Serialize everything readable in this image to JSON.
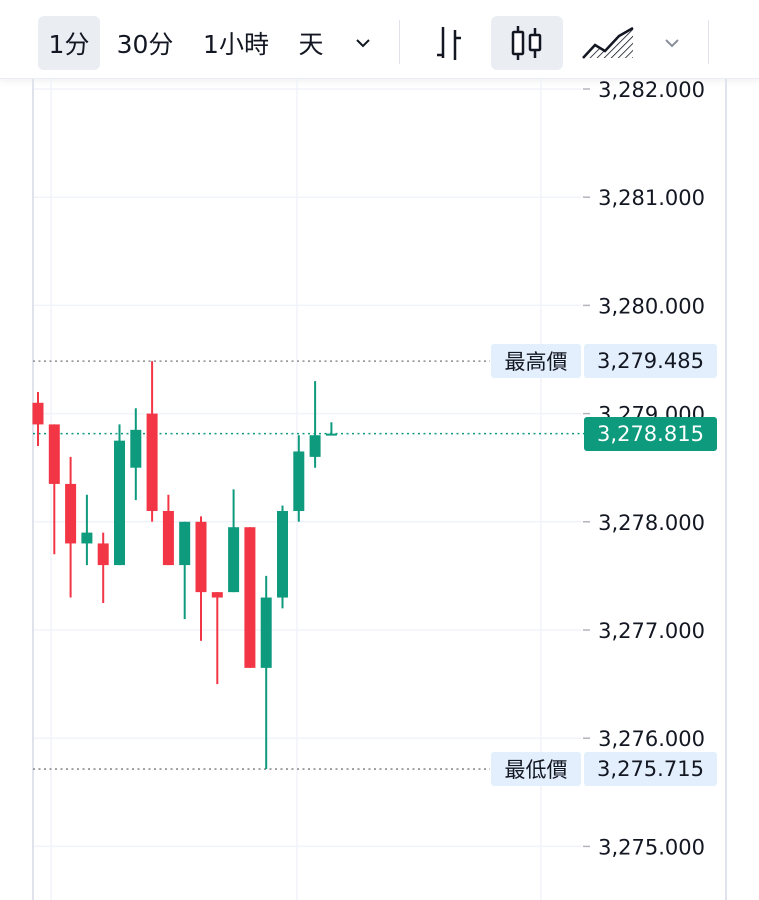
{
  "toolbar": {
    "intervals": [
      {
        "label": "1分",
        "active": true
      },
      {
        "label": "30分",
        "active": false
      },
      {
        "label": "1小時",
        "active": false
      },
      {
        "label": "天",
        "active": false
      }
    ],
    "interval_dropdown_icon": "chevron-down-icon",
    "chart_types": [
      {
        "icon": "bar-chart-icon",
        "active": false
      },
      {
        "icon": "candlestick-icon",
        "active": true
      },
      {
        "icon": "area-chart-icon",
        "active": false
      }
    ],
    "type_dropdown_icon": "chevron-down-icon"
  },
  "chart_data": {
    "type": "candlestick",
    "up_color": "#0d9a7d",
    "down_color": "#f23645",
    "y_ticks": [
      "3,282.000",
      "3,281.000",
      "3,280.000",
      "3,279.000",
      "3,278.000",
      "3,277.000",
      "3,276.000",
      "3,275.000"
    ],
    "y_tick_values": [
      3282,
      3281,
      3280,
      3279,
      3278,
      3277,
      3276,
      3275
    ],
    "ylim": [
      3274.5,
      3282.1
    ],
    "candles": [
      {
        "o": 3279.1,
        "h": 3279.2,
        "l": 3278.7,
        "c": 3278.9
      },
      {
        "o": 3278.9,
        "h": 3278.9,
        "l": 3277.7,
        "c": 3278.35
      },
      {
        "o": 3278.35,
        "h": 3278.6,
        "l": 3277.3,
        "c": 3277.8
      },
      {
        "o": 3277.8,
        "h": 3278.25,
        "l": 3277.6,
        "c": 3277.9
      },
      {
        "o": 3277.8,
        "h": 3277.9,
        "l": 3277.25,
        "c": 3277.6
      },
      {
        "o": 3277.6,
        "h": 3278.9,
        "l": 3277.6,
        "c": 3278.75
      },
      {
        "o": 3278.5,
        "h": 3279.05,
        "l": 3278.2,
        "c": 3278.85
      },
      {
        "o": 3279.0,
        "h": 3279.485,
        "l": 3278.0,
        "c": 3278.1
      },
      {
        "o": 3278.1,
        "h": 3278.25,
        "l": 3277.6,
        "c": 3277.6
      },
      {
        "o": 3277.6,
        "h": 3278.0,
        "l": 3277.1,
        "c": 3278.0
      },
      {
        "o": 3278.0,
        "h": 3278.05,
        "l": 3276.9,
        "c": 3277.35
      },
      {
        "o": 3277.35,
        "h": 3277.35,
        "l": 3276.5,
        "c": 3277.3
      },
      {
        "o": 3277.35,
        "h": 3278.3,
        "l": 3277.35,
        "c": 3277.95
      },
      {
        "o": 3277.95,
        "h": 3277.95,
        "l": 3276.65,
        "c": 3276.65
      },
      {
        "o": 3276.65,
        "h": 3277.5,
        "l": 3275.715,
        "c": 3277.3
      },
      {
        "o": 3277.3,
        "h": 3278.15,
        "l": 3277.2,
        "c": 3278.1
      },
      {
        "o": 3278.1,
        "h": 3278.8,
        "l": 3278.0,
        "c": 3278.65
      },
      {
        "o": 3278.6,
        "h": 3279.3,
        "l": 3278.5,
        "c": 3278.8
      },
      {
        "o": 3278.815,
        "h": 3278.92,
        "l": 3278.8,
        "c": 3278.815
      }
    ],
    "high": {
      "label": "最高價",
      "value": "3,279.485",
      "v": 3279.485
    },
    "low": {
      "label": "最低價",
      "value": "3,275.715",
      "v": 3275.715
    },
    "last": {
      "value": "3,278.815",
      "v": 3278.815
    },
    "grid": true
  },
  "colors": {
    "label_bg": "#e3effd",
    "last_bg": "#0d9a7d",
    "grid": "#f0f3fa",
    "axis_border": "#e0e3eb",
    "extreme_line": "#8c8c8c"
  }
}
